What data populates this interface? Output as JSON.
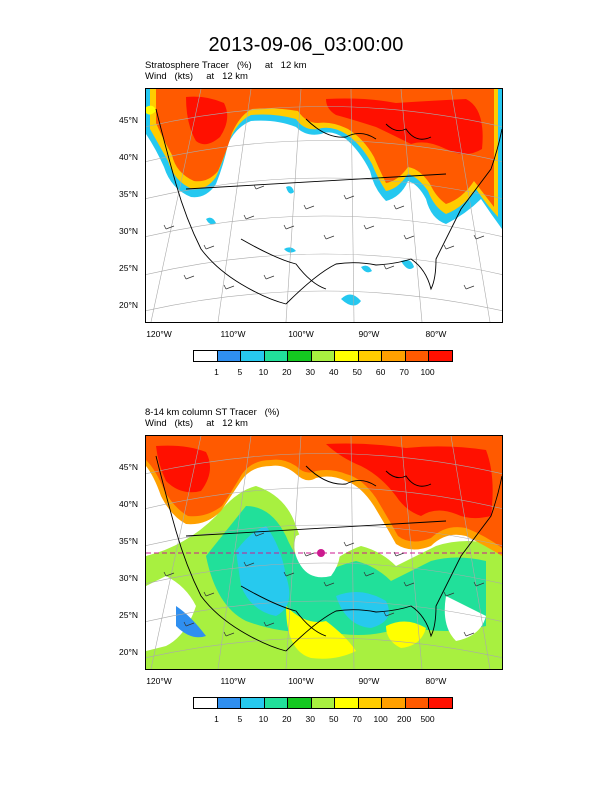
{
  "title": "2013-09-06_03:00:00",
  "panels": [
    {
      "subtitle_line1": "Stratosphere Tracer   (%)     at   12 km",
      "subtitle_line2": "Wind   (kts)     at   12 km",
      "lat_labels": [
        "45°N",
        "40°N",
        "35°N",
        "30°N",
        "25°N",
        "20°N"
      ],
      "lon_labels": [
        "120°W",
        "110°W",
        "100°W",
        "90°W",
        "80°W"
      ],
      "colorbar_labels": [
        "1",
        "5",
        "10",
        "20",
        "30",
        "40",
        "50",
        "60",
        "70",
        "100"
      ],
      "colorbar_colors": [
        "#ffffff",
        "#2f8ff0",
        "#27c9ee",
        "#21e09a",
        "#14c820",
        "#a8f040",
        "#ffff00",
        "#ffcc00",
        "#ffa000",
        "#ff5a00",
        "#ff1000"
      ]
    },
    {
      "subtitle_line1": "8-14 km column ST Tracer   (%)",
      "subtitle_line2": "Wind   (kts)     at   12 km",
      "lat_labels": [
        "45°N",
        "40°N",
        "35°N",
        "30°N",
        "25°N",
        "20°N"
      ],
      "lon_labels": [
        "120°W",
        "110°W",
        "100°W",
        "90°W",
        "80°W"
      ],
      "colorbar_labels": [
        "1",
        "5",
        "10",
        "20",
        "30",
        "50",
        "70",
        "100",
        "200",
        "500"
      ],
      "colorbar_colors": [
        "#ffffff",
        "#2f8ff0",
        "#27c9ee",
        "#21e09a",
        "#14c820",
        "#a8f040",
        "#ffff00",
        "#ffcc00",
        "#ffa000",
        "#ff5a00",
        "#ff1000"
      ]
    }
  ]
}
